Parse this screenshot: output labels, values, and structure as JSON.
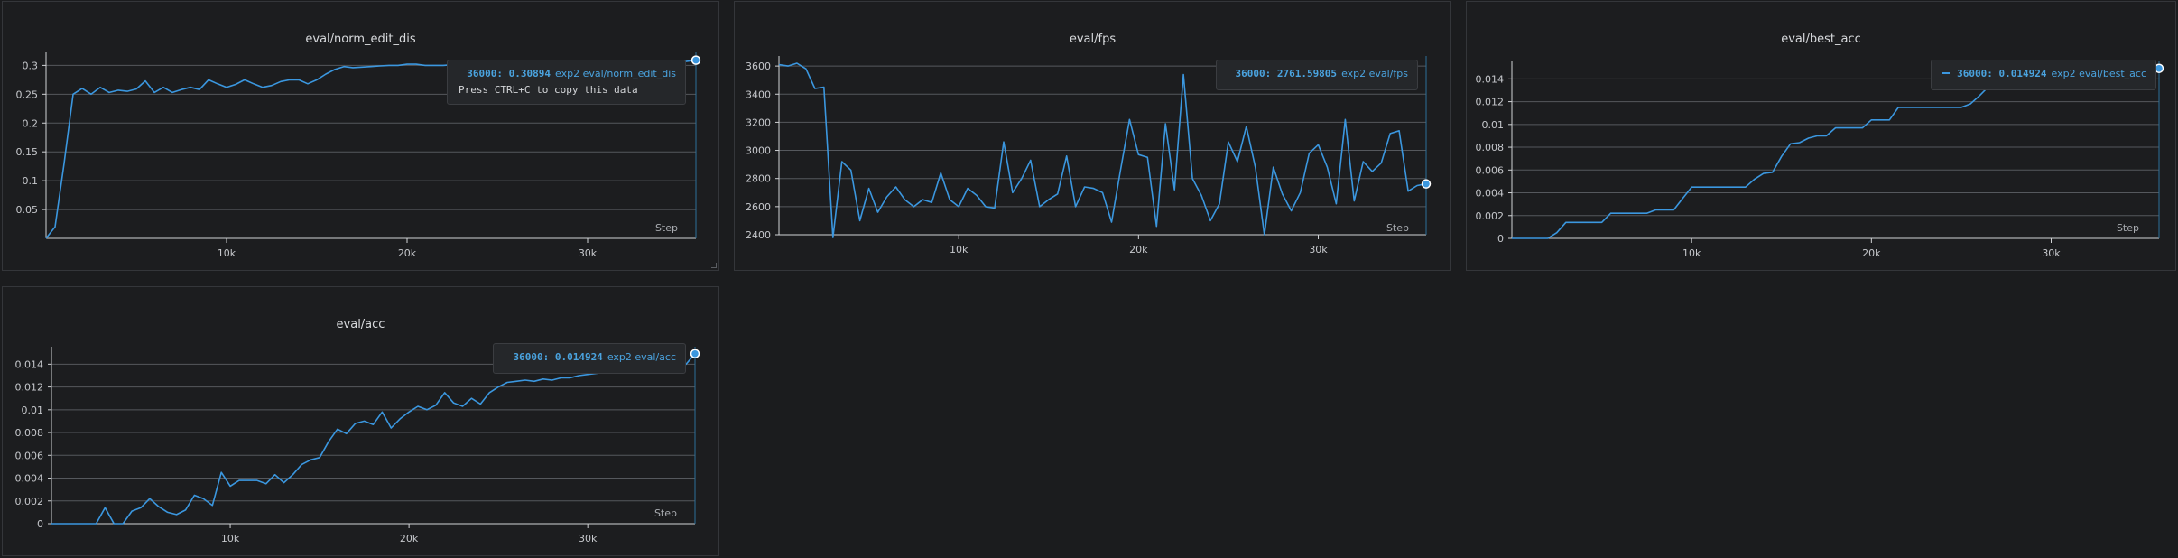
{
  "theme": {
    "line_color": "#3b97df",
    "grid_color": "#55585d",
    "bg_color": "#1c1d1f"
  },
  "chart_data": [
    {
      "id": "norm_edit_dis",
      "type": "line",
      "title": "eval/norm_edit_dis",
      "xlabel": "Step",
      "ylabel": "",
      "xlim": [
        0,
        36000
      ],
      "ylim": [
        0,
        0.31
      ],
      "yticks": [
        0.05,
        0.1,
        0.15,
        0.2,
        0.25,
        0.3
      ],
      "ytick_labels": [
        "0.05",
        "0.1",
        "0.15",
        "0.2",
        "0.25",
        "0.3"
      ],
      "xticks": [
        10000,
        20000,
        30000
      ],
      "xtick_labels": [
        "10k",
        "20k",
        "30k"
      ],
      "grid": true,
      "series": [
        {
          "name": "exp2 eval/norm_edit_dis",
          "x": [
            0,
            500,
            1000,
            1500,
            2000,
            2500,
            3000,
            3500,
            4000,
            4500,
            5000,
            5500,
            6000,
            6500,
            7000,
            7500,
            8000,
            8500,
            9000,
            9500,
            10000,
            10500,
            11000,
            11500,
            12000,
            12500,
            13000,
            13500,
            14000,
            14500,
            15000,
            15500,
            16000,
            16500,
            17000,
            17500,
            18000,
            18500,
            19000,
            19500,
            20000,
            20500,
            21000,
            21500,
            22000,
            22500,
            23000,
            24000,
            25000,
            26000,
            27000,
            28000,
            29000,
            30000,
            31000,
            32000,
            33000,
            34000,
            35000,
            36000
          ],
          "y": [
            0.0,
            0.02,
            0.13,
            0.25,
            0.26,
            0.25,
            0.262,
            0.253,
            0.257,
            0.255,
            0.259,
            0.273,
            0.253,
            0.262,
            0.253,
            0.258,
            0.262,
            0.258,
            0.275,
            0.268,
            0.262,
            0.267,
            0.275,
            0.268,
            0.262,
            0.265,
            0.272,
            0.275,
            0.275,
            0.268,
            0.275,
            0.285,
            0.293,
            0.298,
            0.296,
            0.297,
            0.298,
            0.299,
            0.3,
            0.3,
            0.302,
            0.302,
            0.3,
            0.3,
            0.3,
            0.301,
            0.302,
            0.301,
            0.302,
            0.301,
            0.302,
            0.302,
            0.302,
            0.303,
            0.303,
            0.303,
            0.304,
            0.304,
            0.305,
            0.309
          ]
        }
      ],
      "tooltip": {
        "step": "36000",
        "value": "0.30894",
        "run": "exp2 eval/norm_edit_dis",
        "hint": "Press CTRL+C to copy this data"
      }
    },
    {
      "id": "fps",
      "type": "line",
      "title": "eval/fps",
      "xlabel": "Step",
      "ylabel": "",
      "xlim": [
        0,
        36000
      ],
      "ylim": [
        2400,
        3620
      ],
      "yticks": [
        2400,
        2600,
        2800,
        3000,
        3200,
        3400,
        3600
      ],
      "ytick_labels": [
        "2400",
        "2600",
        "2800",
        "3000",
        "3200",
        "3400",
        "3600"
      ],
      "xticks": [
        10000,
        20000,
        30000
      ],
      "xtick_labels": [
        "10k",
        "20k",
        "30k"
      ],
      "grid": true,
      "series": [
        {
          "name": "exp2 eval/fps",
          "x": [
            0,
            500,
            1000,
            1500,
            2000,
            2500,
            3000,
            3500,
            4000,
            4500,
            5000,
            5500,
            6000,
            6500,
            7000,
            7500,
            8000,
            8500,
            9000,
            9500,
            10000,
            10500,
            11000,
            11500,
            12000,
            12500,
            13000,
            13500,
            14000,
            14500,
            15000,
            15500,
            16000,
            16500,
            17000,
            17500,
            18000,
            18500,
            19000,
            19500,
            20000,
            20500,
            21000,
            21500,
            22000,
            22500,
            23000,
            23500,
            24000,
            24500,
            25000,
            25500,
            26000,
            26500,
            27000,
            27500,
            28000,
            28500,
            29000,
            29500,
            30000,
            30500,
            31000,
            31500,
            32000,
            32500,
            33000,
            33500,
            34000,
            34500,
            35000,
            35500,
            36000
          ],
          "y": [
            3610,
            3600,
            3620,
            3580,
            3440,
            3450,
            2380,
            2920,
            2860,
            2500,
            2730,
            2560,
            2670,
            2740,
            2650,
            2600,
            2650,
            2630,
            2840,
            2650,
            2600,
            2730,
            2680,
            2600,
            2590,
            3060,
            2700,
            2800,
            2930,
            2600,
            2650,
            2690,
            2960,
            2600,
            2740,
            2730,
            2700,
            2490,
            2860,
            3220,
            2970,
            2950,
            2460,
            3190,
            2720,
            3540,
            2800,
            2680,
            2500,
            2620,
            3060,
            2920,
            3170,
            2880,
            2400,
            2880,
            2690,
            2570,
            2700,
            2980,
            3040,
            2880,
            2620,
            3220,
            2640,
            2920,
            2850,
            2910,
            3120,
            3140,
            2710,
            2750,
            2761.59
          ]
        }
      ],
      "tooltip": {
        "step": "36000",
        "value": "2761.59805",
        "run": "exp2 eval/fps"
      }
    },
    {
      "id": "best_acc",
      "type": "line",
      "title": "eval/best_acc",
      "xlabel": "Step",
      "ylabel": "",
      "xlim": [
        0,
        36000
      ],
      "ylim": [
        0,
        0.0149
      ],
      "yticks": [
        0,
        0.002,
        0.004,
        0.006,
        0.008,
        0.01,
        0.012,
        0.014
      ],
      "ytick_labels": [
        "0",
        "0.002",
        "0.004",
        "0.006",
        "0.008",
        "0.01",
        "0.012",
        "0.014"
      ],
      "xticks": [
        10000,
        20000,
        30000
      ],
      "xtick_labels": [
        "10k",
        "20k",
        "30k"
      ],
      "grid": true,
      "series": [
        {
          "name": "exp2 eval/best_acc",
          "x": [
            0,
            2000,
            2500,
            3000,
            5000,
            5500,
            7000,
            7500,
            8000,
            9000,
            9500,
            10000,
            11000,
            13000,
            13500,
            14000,
            14500,
            15000,
            15500,
            16000,
            16500,
            17000,
            17500,
            18000,
            18500,
            19000,
            19500,
            20000,
            20500,
            21000,
            21500,
            22000,
            25000,
            25500,
            26000,
            26500,
            36000
          ],
          "y": [
            0,
            0,
            0.0005,
            0.0014,
            0.0014,
            0.0022,
            0.0022,
            0.0022,
            0.0025,
            0.0025,
            0.0035,
            0.0045,
            0.0045,
            0.0045,
            0.0052,
            0.0057,
            0.0058,
            0.0072,
            0.0083,
            0.0084,
            0.0088,
            0.009,
            0.009,
            0.0097,
            0.0097,
            0.0097,
            0.0097,
            0.0104,
            0.0104,
            0.0104,
            0.0115,
            0.0115,
            0.0115,
            0.0118,
            0.0125,
            0.0133,
            0.014924
          ]
        }
      ],
      "tooltip": {
        "step": "36000",
        "value": "0.014924",
        "run": "exp2 eval/best_acc"
      }
    },
    {
      "id": "acc",
      "type": "line",
      "title": "eval/acc",
      "xlabel": "Step",
      "ylabel": "",
      "xlim": [
        0,
        36000
      ],
      "ylim": [
        0,
        0.0149
      ],
      "yticks": [
        0,
        0.002,
        0.004,
        0.006,
        0.008,
        0.01,
        0.012,
        0.014
      ],
      "ytick_labels": [
        "0",
        "0.002",
        "0.004",
        "0.006",
        "0.008",
        "0.01",
        "0.012",
        "0.014"
      ],
      "xticks": [
        10000,
        20000,
        30000
      ],
      "xtick_labels": [
        "10k",
        "20k",
        "30k"
      ],
      "grid": true,
      "series": [
        {
          "name": "exp2 eval/acc",
          "x": [
            0,
            500,
            1000,
            1500,
            2000,
            2500,
            3000,
            3500,
            4000,
            4500,
            5000,
            5500,
            6000,
            6500,
            7000,
            7500,
            8000,
            8500,
            9000,
            9500,
            10000,
            10500,
            11000,
            11500,
            12000,
            12500,
            13000,
            13500,
            14000,
            14500,
            15000,
            15500,
            16000,
            16500,
            17000,
            17500,
            18000,
            18500,
            19000,
            19500,
            20000,
            20500,
            21000,
            21500,
            22000,
            22500,
            23000,
            23500,
            24000,
            24500,
            25000,
            25500,
            26000,
            26500,
            27000,
            27500,
            28000,
            28500,
            29000,
            29500,
            30000,
            30500,
            31000,
            31500,
            32000,
            32500,
            33000,
            33500,
            34000,
            34500,
            35000,
            35500,
            36000
          ],
          "y": [
            0,
            0,
            0,
            0,
            0,
            0,
            0.0014,
            0,
            0,
            0.0011,
            0.0014,
            0.0022,
            0.0015,
            0.001,
            0.0008,
            0.0012,
            0.0025,
            0.0022,
            0.0016,
            0.0045,
            0.0033,
            0.0038,
            0.0038,
            0.0038,
            0.0035,
            0.0043,
            0.0036,
            0.0043,
            0.0052,
            0.0056,
            0.0058,
            0.0072,
            0.0083,
            0.0079,
            0.0088,
            0.009,
            0.0087,
            0.0098,
            0.0084,
            0.0092,
            0.0098,
            0.0103,
            0.01,
            0.0104,
            0.0115,
            0.0106,
            0.0103,
            0.011,
            0.0105,
            0.0115,
            0.012,
            0.0124,
            0.0125,
            0.0126,
            0.0125,
            0.0127,
            0.0126,
            0.0128,
            0.0128,
            0.013,
            0.0131,
            0.0132,
            0.0133,
            0.0134,
            0.0134,
            0.0135,
            0.0136,
            0.0137,
            0.0138,
            0.0139,
            0.014,
            0.014,
            0.014924
          ]
        }
      ],
      "tooltip": {
        "step": "36000",
        "value": "0.014924",
        "run": "exp2 eval/acc"
      }
    }
  ]
}
